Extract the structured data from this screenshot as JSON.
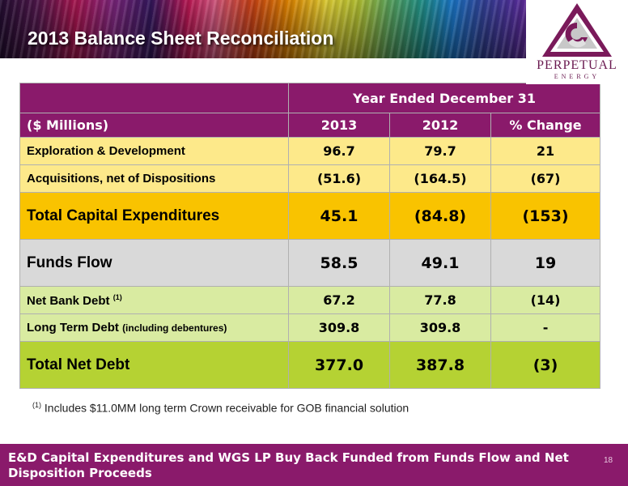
{
  "header": {
    "title": "2013 Balance Sheet Reconciliation"
  },
  "logo": {
    "name": "PERPETUAL",
    "sub": "ENERGY"
  },
  "table": {
    "period_header": "Year Ended December 31",
    "columns": [
      "($ Millions)",
      "2013",
      "2012",
      "% Change"
    ],
    "rows": [
      {
        "label": "Exploration & Development",
        "values": [
          "96.7",
          "79.7",
          "21"
        ]
      },
      {
        "label": "Acquisitions, net of Dispositions",
        "values": [
          "(51.6)",
          "(164.5)",
          "(67)"
        ]
      },
      {
        "label": "Total Capital Expenditures",
        "values": [
          "45.1",
          "(84.8)",
          "(153)"
        ]
      },
      {
        "label": "Funds Flow",
        "values": [
          "58.5",
          "49.1",
          "19"
        ]
      },
      {
        "label": "Net Bank Debt",
        "note": "(1)",
        "values": [
          "67.2",
          "77.8",
          "(14)"
        ]
      },
      {
        "label": "Long Term Debt",
        "qualifier": "(including debentures)",
        "values": [
          "309.8",
          "309.8",
          "-"
        ]
      },
      {
        "label": "Total Net Debt",
        "values": [
          "377.0",
          "387.8",
          "(3)"
        ]
      }
    ]
  },
  "footnote": {
    "marker": "(1)",
    "text": "Includes $11.0MM long term Crown receivable for GOB financial solution"
  },
  "footer": {
    "message": "E&D Capital Expenditures and WGS LP Buy Back Funded from Funds Flow and Net Disposition Proceeds",
    "page": "18"
  },
  "colors": {
    "plum": "#8a1a6b",
    "yellow_light": "#fde98a",
    "yellow_dark": "#f9c300",
    "grey": "#d9d9d9",
    "green_light": "#d9eba1",
    "green_dark": "#b5d233"
  }
}
